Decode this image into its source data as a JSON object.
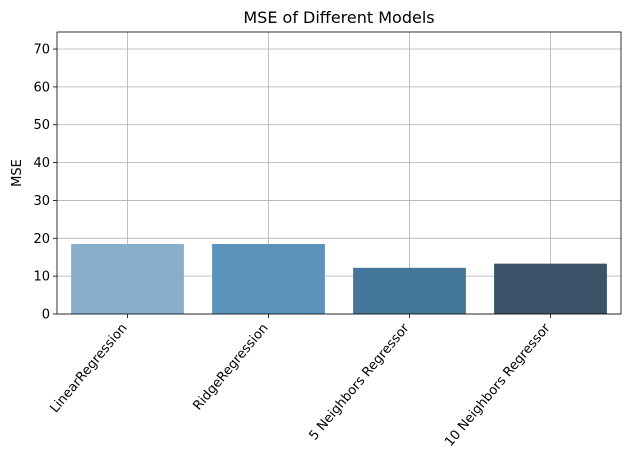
{
  "chart_data": {
    "type": "bar",
    "title": "MSE of Different Models",
    "xlabel": "",
    "ylabel": "MSE",
    "categories": [
      "LinearRegression",
      "RidgeRegression",
      "5 Neighbors Regressor",
      "10 Neighbors Regressor"
    ],
    "values": [
      18.5,
      18.5,
      12.2,
      13.3
    ],
    "colors": [
      "#88aeca",
      "#5b93bb",
      "#437699",
      "#3b5268"
    ],
    "ylim": [
      0,
      74.5
    ],
    "yticks": [
      0,
      10,
      20,
      30,
      40,
      50,
      60,
      70
    ],
    "grid": true,
    "legend": "none"
  }
}
